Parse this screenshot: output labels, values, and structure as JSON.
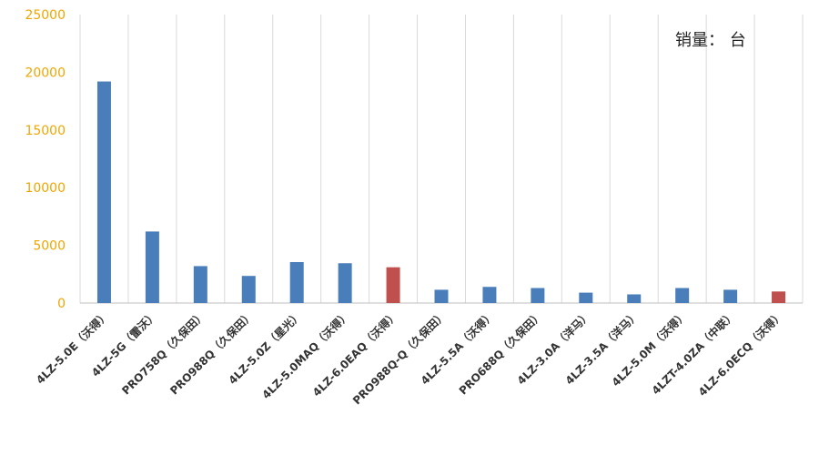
{
  "chart_data": {
    "type": "bar",
    "unit_label": "销量：  台",
    "categories": [
      "4LZ-5.0E（沃得）",
      "4LZ-5G（雷沃）",
      "PRO758Q（久保田）",
      "PRO988Q（久保田）",
      "4LZ-5.0Z（星光）",
      "4LZ-5.0MAQ（沃得）",
      "4LZ-6.0EAQ（沃得）",
      "PRO988Q-Q（久保田）",
      "4LZ-5.5A（沃得）",
      "PRO688Q（久保田）",
      "4LZ-3.0A（洋马）",
      "4LZ-3.5A（洋马）",
      "4LZ-5.0M（沃得）",
      "4LZT-4.0ZA（中联）",
      "4LZ-6.0ECQ（沃得）"
    ],
    "values": [
      19200,
      6200,
      3200,
      2350,
      3550,
      3450,
      3100,
      1150,
      1400,
      1300,
      900,
      750,
      1300,
      1150,
      1000
    ],
    "highlighted": [
      false,
      false,
      false,
      false,
      false,
      false,
      true,
      false,
      false,
      false,
      false,
      false,
      false,
      false,
      true
    ],
    "ylim": [
      0,
      25000
    ],
    "yticks": [
      "0",
      "5000",
      "10000",
      "15000",
      "20000",
      "25000"
    ],
    "colors": {
      "bar": "#4a7ebb",
      "highlight": "#c0504d",
      "tick_label": "#f0a500",
      "grid": "#d9d9d9",
      "axis": "#bfbfbf",
      "category_label": "#333333"
    },
    "grid": true
  }
}
